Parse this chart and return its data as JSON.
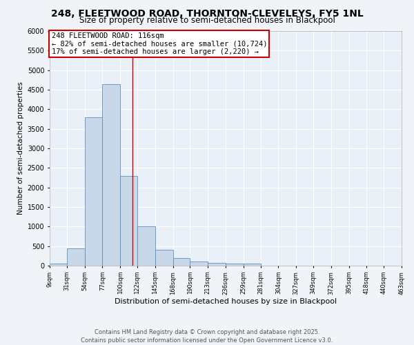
{
  "title1": "248, FLEETWOOD ROAD, THORNTON-CLEVELEYS, FY5 1NL",
  "title2": "Size of property relative to semi-detached houses in Blackpool",
  "xlabel": "Distribution of semi-detached houses by size in Blackpool",
  "ylabel": "Number of semi-detached properties",
  "bin_edges": [
    9,
    31,
    54,
    77,
    100,
    122,
    145,
    168,
    190,
    213,
    236,
    259,
    281,
    304,
    327,
    349,
    372,
    395,
    418,
    440,
    463
  ],
  "bar_heights": [
    50,
    450,
    3800,
    4650,
    2300,
    1000,
    400,
    200,
    100,
    75,
    50,
    50,
    0,
    0,
    0,
    0,
    0,
    0,
    0,
    0
  ],
  "bar_color": "#c8d8e8",
  "bar_edge_color": "#5a8fc0",
  "vline_x": 116,
  "vline_color": "#cc0000",
  "ylim": [
    0,
    6000
  ],
  "yticks": [
    0,
    500,
    1000,
    1500,
    2000,
    2500,
    3000,
    3500,
    4000,
    4500,
    5000,
    5500,
    6000
  ],
  "xtick_labels": [
    "9sqm",
    "31sqm",
    "54sqm",
    "77sqm",
    "100sqm",
    "122sqm",
    "145sqm",
    "168sqm",
    "190sqm",
    "213sqm",
    "236sqm",
    "259sqm",
    "281sqm",
    "304sqm",
    "327sqm",
    "349sqm",
    "372sqm",
    "395sqm",
    "418sqm",
    "440sqm",
    "463sqm"
  ],
  "annotation_title": "248 FLEETWOOD ROAD: 116sqm",
  "annotation_line1": "← 82% of semi-detached houses are smaller (10,724)",
  "annotation_line2": "17% of semi-detached houses are larger (2,220) →",
  "annotation_box_color": "#ffffff",
  "annotation_border_color": "#cc0000",
  "footer1": "Contains HM Land Registry data © Crown copyright and database right 2025.",
  "footer2": "Contains public sector information licensed under the Open Government Licence v3.0.",
  "bg_color": "#f0f4f8",
  "plot_bg_color": "#eaf0f8",
  "grid_color": "#ffffff",
  "title1_fontsize": 10,
  "title2_fontsize": 8.5,
  "footer_fontsize": 6.0,
  "annotation_fontsize": 7.5
}
